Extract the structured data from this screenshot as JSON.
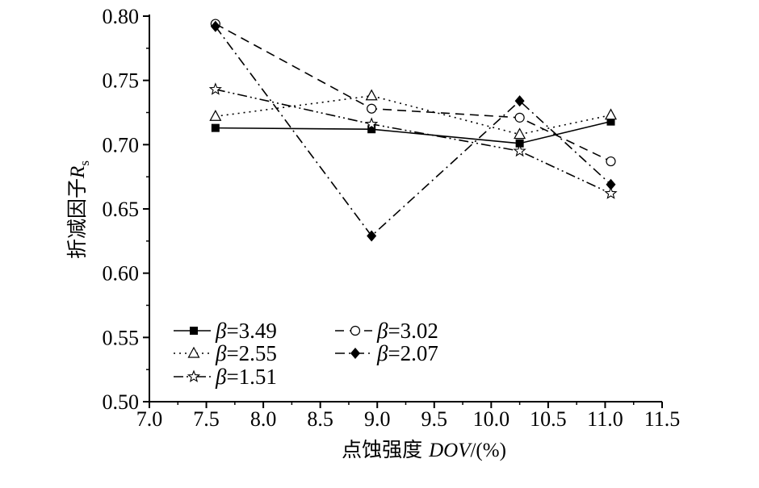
{
  "chart_data": {
    "type": "line",
    "xlabel": {
      "cjk": "点蚀强度",
      "italic": "DOV",
      "rest": "/(%)"
    },
    "ylabel": {
      "cjk": "折减因子",
      "italic": "R",
      "sub": "s"
    },
    "xlim": [
      7.0,
      11.5
    ],
    "ylim": [
      0.5,
      0.8
    ],
    "xticks": [
      "7.0",
      "7.5",
      "8.0",
      "8.5",
      "9.0",
      "9.5",
      "10.0",
      "10.5",
      "11.0",
      "11.5"
    ],
    "yticks": [
      "0.50",
      "0.55",
      "0.60",
      "0.65",
      "0.70",
      "0.75",
      "0.80"
    ],
    "legend_position": "lower-left",
    "x": [
      7.58,
      8.95,
      10.25,
      11.05
    ],
    "series": [
      {
        "name": "β=3.49",
        "symbol": "β",
        "value_text": "=3.49",
        "values": [
          0.713,
          0.712,
          0.701,
          0.718
        ],
        "marker": "square-filled",
        "dash": "solid"
      },
      {
        "name": "β=3.02",
        "symbol": "β",
        "value_text": "=3.02",
        "values": [
          0.794,
          0.728,
          0.721,
          0.687
        ],
        "marker": "circle-open",
        "dash": "dash"
      },
      {
        "name": "β=2.55",
        "symbol": "β",
        "value_text": "=2.55",
        "values": [
          0.722,
          0.738,
          0.708,
          0.723
        ],
        "marker": "triangle-open",
        "dash": "dot"
      },
      {
        "name": "β=2.07",
        "symbol": "β",
        "value_text": "=2.07",
        "values": [
          0.792,
          0.629,
          0.734,
          0.669
        ],
        "marker": "diamond-filled",
        "dash": "dashdot"
      },
      {
        "name": "β=1.51",
        "symbol": "β",
        "value_text": "=1.51",
        "values": [
          0.743,
          0.716,
          0.695,
          0.662
        ],
        "marker": "star-open",
        "dash": "dashdotdot"
      }
    ]
  }
}
